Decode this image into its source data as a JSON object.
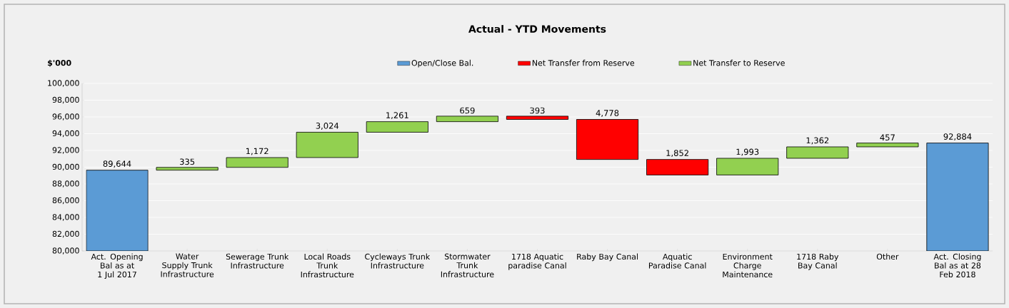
{
  "chart_data": {
    "type": "bar",
    "title": "Actual  -  YTD Movements",
    "ylabel": "$'000",
    "categories": [
      "Act. Opening Bal as at 1 Jul 2017",
      "Water Supply Trunk Infrastructure",
      "Sewerage Trunk Infrastructure",
      "Local Roads Trunk Infrastructure",
      "Cycleways Trunk Infrastructure",
      "Stormwater Trunk Infrastructure",
      "1718 Aquatic paradise Canal",
      "Raby Bay Canal",
      "Aquatic Paradise Canal",
      "Environment Charge Maintenance",
      "1718 Raby Bay Canal",
      "Other",
      "Act. Closing Bal as at 28 Feb 2018"
    ],
    "series": [
      {
        "name": "Open/Close Bal.",
        "color": "#5b9bd5",
        "values": [
          89644,
          null,
          null,
          null,
          null,
          null,
          null,
          null,
          null,
          null,
          null,
          null,
          92884
        ],
        "value_labels": [
          "89,644",
          null,
          null,
          null,
          null,
          null,
          null,
          null,
          null,
          null,
          null,
          null,
          "92,884"
        ]
      },
      {
        "name": "Net Transfer from Reserve",
        "color": "#ff0000",
        "values": [
          null,
          null,
          null,
          null,
          null,
          null,
          393,
          4778,
          1852,
          null,
          null,
          null,
          null
        ],
        "base": [
          null,
          null,
          null,
          null,
          null,
          null,
          95702,
          90924,
          89072,
          null,
          null,
          null,
          null
        ],
        "value_labels": [
          null,
          null,
          null,
          null,
          null,
          null,
          "393",
          "4,778",
          "1,852",
          null,
          null,
          null,
          null
        ]
      },
      {
        "name": "Net Transfer to Reserve",
        "color": "#92d050",
        "values": [
          null,
          335,
          1172,
          3024,
          1261,
          659,
          null,
          null,
          null,
          1993,
          1362,
          457,
          null
        ],
        "base": [
          null,
          89644,
          89979,
          91151,
          94175,
          95436,
          null,
          null,
          null,
          89072,
          91065,
          92427,
          null
        ],
        "value_labels": [
          null,
          "335",
          "1,172",
          "3,024",
          "1,261",
          "659",
          null,
          null,
          null,
          "1,993",
          "1,362",
          "457",
          null
        ]
      }
    ],
    "ylim": [
      80000,
      100000
    ],
    "yticks": [
      {
        "value": 80000,
        "label": "80,000"
      },
      {
        "value": 82000,
        "label": "82,000"
      },
      {
        "value": 84000,
        "label": "84,000"
      },
      {
        "value": 86000,
        "label": "86,000"
      },
      {
        "value": 88000,
        "label": "88,000"
      },
      {
        "value": 90000,
        "label": "90,000"
      },
      {
        "value": 92000,
        "label": "92,000"
      },
      {
        "value": 94000,
        "label": "94,000"
      },
      {
        "value": 96000,
        "label": "96,000"
      },
      {
        "value": 98000,
        "label": "98,000"
      },
      {
        "value": 100000,
        "label": "100,000"
      }
    ],
    "grid": "y",
    "legend": "top"
  }
}
